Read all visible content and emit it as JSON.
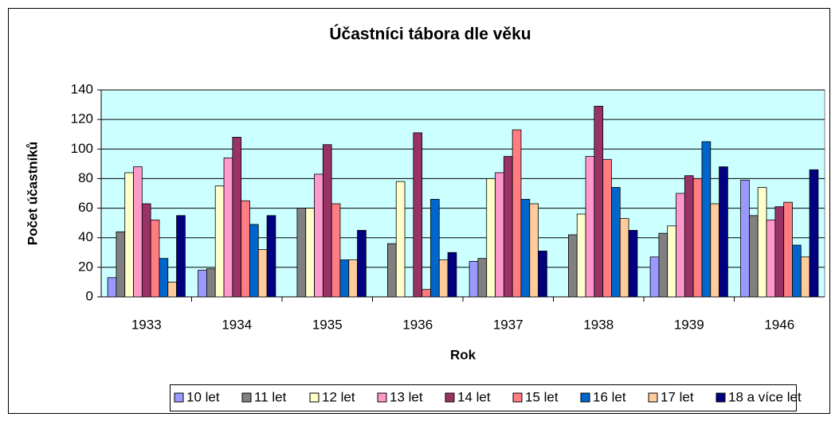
{
  "chart_data": {
    "type": "bar",
    "title": "Účastníci tábora dle věku",
    "x_label": "Rok",
    "y_label": "Počet účastníků",
    "categories": [
      "1933",
      "1934",
      "1935",
      "1936",
      "1937",
      "1938",
      "1939",
      "1946"
    ],
    "series": [
      {
        "name": "10 let",
        "color": "#9999ff",
        "values": [
          13,
          18,
          null,
          null,
          24,
          null,
          27,
          79
        ]
      },
      {
        "name": "11 let",
        "color": "#808080",
        "values": [
          44,
          19,
          60,
          36,
          26,
          42,
          43,
          55
        ]
      },
      {
        "name": "12 let",
        "color": "#ffffcc",
        "values": [
          84,
          75,
          60,
          78,
          80,
          56,
          48,
          74
        ]
      },
      {
        "name": "13 let",
        "color": "#ff99cc",
        "values": [
          88,
          94,
          83,
          null,
          84,
          95,
          70,
          52
        ]
      },
      {
        "name": "14 let",
        "color": "#993366",
        "values": [
          63,
          108,
          103,
          111,
          95,
          129,
          82,
          61
        ]
      },
      {
        "name": "15 let",
        "color": "#ff7c80",
        "values": [
          52,
          65,
          63,
          5,
          113,
          93,
          80,
          64
        ]
      },
      {
        "name": "16 let",
        "color": "#0066cc",
        "values": [
          26,
          49,
          25,
          66,
          66,
          74,
          105,
          35
        ]
      },
      {
        "name": "17 let",
        "color": "#ffcc99",
        "values": [
          10,
          32,
          25,
          25,
          63,
          53,
          63,
          27
        ]
      },
      {
        "name": "18 a více let",
        "color": "#000080",
        "values": [
          55,
          55,
          45,
          30,
          31,
          45,
          88,
          86
        ]
      }
    ],
    "ylim": [
      0,
      140
    ],
    "yticks": [
      0,
      20,
      40,
      60,
      80,
      100,
      120,
      140
    ],
    "grid": true,
    "plot_background": "#ccffff",
    "legend": "bottom"
  }
}
